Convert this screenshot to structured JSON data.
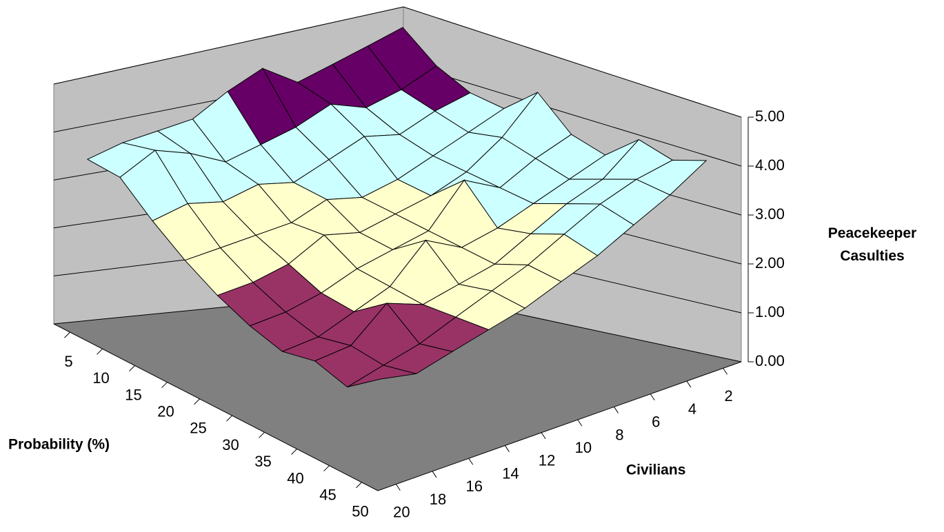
{
  "chart_data": {
    "type": "surface",
    "x_label": "Probability (%)",
    "y_label": "Civilians",
    "z_label": "Peacekeeper Casulties",
    "x": [
      5,
      10,
      15,
      20,
      25,
      30,
      35,
      40,
      45,
      50
    ],
    "y": [
      2,
      4,
      6,
      8,
      10,
      12,
      14,
      16,
      18,
      20
    ],
    "z": [
      [
        4.8,
        4.6,
        4.4,
        4.2,
        4.6,
        4.3,
        3.9,
        3.8,
        3.7,
        3.5
      ],
      [
        4.3,
        4.0,
        3.8,
        4.0,
        3.7,
        3.5,
        3.3,
        3.6,
        3.8,
        3.4
      ],
      [
        4.0,
        3.8,
        3.5,
        3.6,
        3.3,
        3.0,
        3.1,
        2.9,
        3.0,
        2.8
      ],
      [
        3.9,
        3.6,
        3.3,
        3.0,
        2.8,
        2.9,
        2.6,
        2.5,
        2.4,
        2.3
      ],
      [
        4.4,
        3.7,
        3.2,
        2.9,
        2.7,
        2.5,
        2.6,
        2.2,
        2.0,
        1.9
      ],
      [
        3.8,
        3.5,
        3.1,
        3.4,
        2.6,
        2.4,
        2.2,
        1.9,
        1.7,
        1.6
      ],
      [
        3.6,
        3.3,
        3.0,
        2.7,
        2.5,
        2.8,
        2.1,
        1.8,
        1.5,
        1.4
      ],
      [
        4.1,
        3.5,
        3.2,
        2.8,
        2.4,
        2.2,
        2.0,
        2.2,
        1.6,
        1.5
      ],
      [
        3.9,
        3.7,
        3.4,
        3.0,
        2.6,
        2.3,
        2.0,
        1.7,
        1.5,
        1.3
      ],
      [
        4.1,
        3.6,
        3.2,
        2.8,
        2.5,
        2.2,
        2.0,
        1.8,
        1.6,
        1.7
      ]
    ],
    "zlim": [
      0,
      5
    ],
    "zticks": [
      {
        "value": 0,
        "label": "0.00"
      },
      {
        "value": 1,
        "label": "1.00"
      },
      {
        "value": 2,
        "label": "2.00"
      },
      {
        "value": 3,
        "label": "3.00"
      },
      {
        "value": 4,
        "label": "4.00"
      },
      {
        "value": 5,
        "label": "5.00"
      }
    ],
    "band_colors": [
      "#9999ff",
      "#993366",
      "#ffffcc",
      "#ccffff",
      "#660066"
    ],
    "wall_color": "#c0c0c0",
    "floor_color": "#808080"
  }
}
